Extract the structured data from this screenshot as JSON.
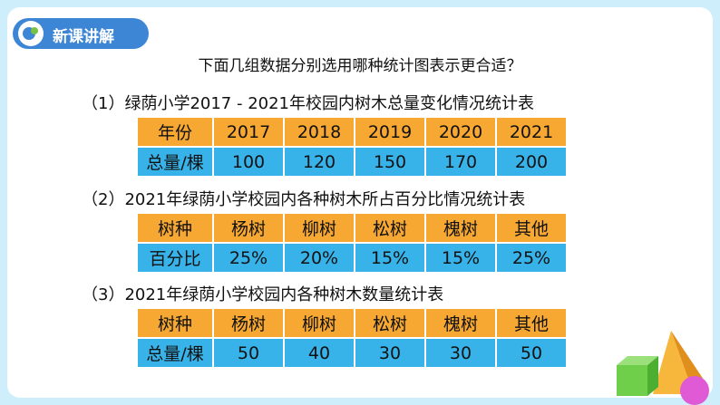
{
  "header": {
    "title": "新课讲解"
  },
  "question": "下面几组数据分别选用哪种统计图表示更合适？",
  "sections": [
    {
      "title": "（1）绿荫小学2017 - 2021年校园内树木总量变化情况统计表",
      "rows": [
        [
          "年份",
          "2017",
          "2018",
          "2019",
          "2020",
          "2021"
        ],
        [
          "总量/棵",
          "100",
          "120",
          "150",
          "170",
          "200"
        ]
      ]
    },
    {
      "title": "（2）2021年绿荫小学校园内各种树木所占百分比情况统计表",
      "rows": [
        [
          "树种",
          "杨树",
          "柳树",
          "松树",
          "槐树",
          "其他"
        ],
        [
          "百分比",
          "25%",
          "20%",
          "15%",
          "15%",
          "25%"
        ]
      ]
    },
    {
      "title": "（3）2021年绿荫小学校园内各种树木数量统计表",
      "rows": [
        [
          "树种",
          "杨树",
          "柳树",
          "松树",
          "槐树",
          "其他"
        ],
        [
          "总量/棵",
          "50",
          "40",
          "30",
          "30",
          "50"
        ]
      ]
    }
  ]
}
